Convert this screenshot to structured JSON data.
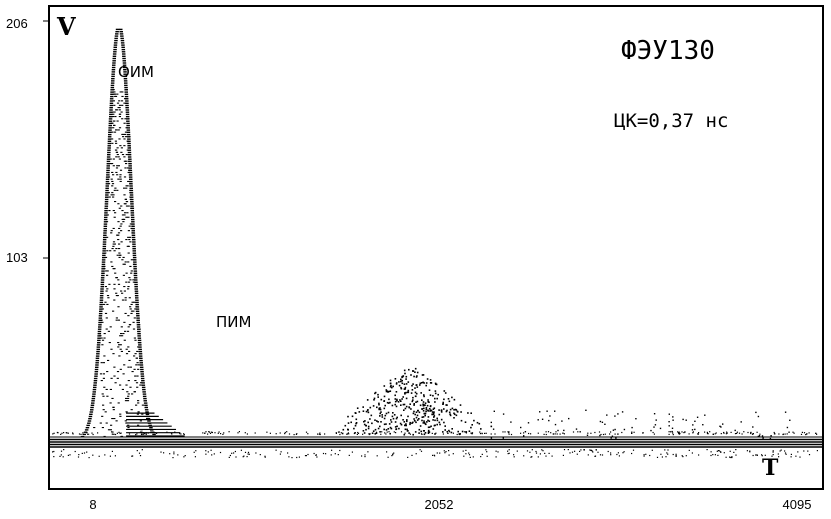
{
  "chart_data": {
    "type": "scatter",
    "title": "ФЭУ130",
    "annotation": "ЦК=0,37 нс",
    "ylabel": "V",
    "xlabel": "T",
    "xlim": [
      8,
      4095
    ],
    "ylim": [
      0,
      206
    ],
    "y_ticks": [
      "206",
      "103"
    ],
    "x_ticks": [
      {
        "value": 8,
        "label": "8"
      },
      {
        "value": 2052,
        "label": "2052"
      },
      {
        "value": 4095,
        "label": "4095"
      }
    ],
    "grid": false,
    "peak_labels": [
      {
        "label": "ОИМ",
        "x": 260,
        "y": 180
      },
      {
        "label": "ПИМ",
        "x": 1750,
        "y": 55
      }
    ],
    "series": [
      {
        "role": "main-peak",
        "shape": "gaussian",
        "center_x": 160,
        "sigma_x": 70,
        "amplitude": 204,
        "base_y": 0
      },
      {
        "role": "secondary-cluster",
        "shape": "scatter-cloud",
        "center_x": 1850,
        "spread_x": 340,
        "y_range": [
          3,
          38
        ]
      },
      {
        "role": "baseline",
        "shape": "band",
        "y": 0,
        "thickness": 6
      }
    ]
  },
  "labels": {
    "title": "ФЭУ130",
    "annotation": "ЦК=0,37 нс",
    "y_axis": "V",
    "x_axis": "T",
    "peak1": "ОИМ",
    "peak2": "ПИМ"
  }
}
